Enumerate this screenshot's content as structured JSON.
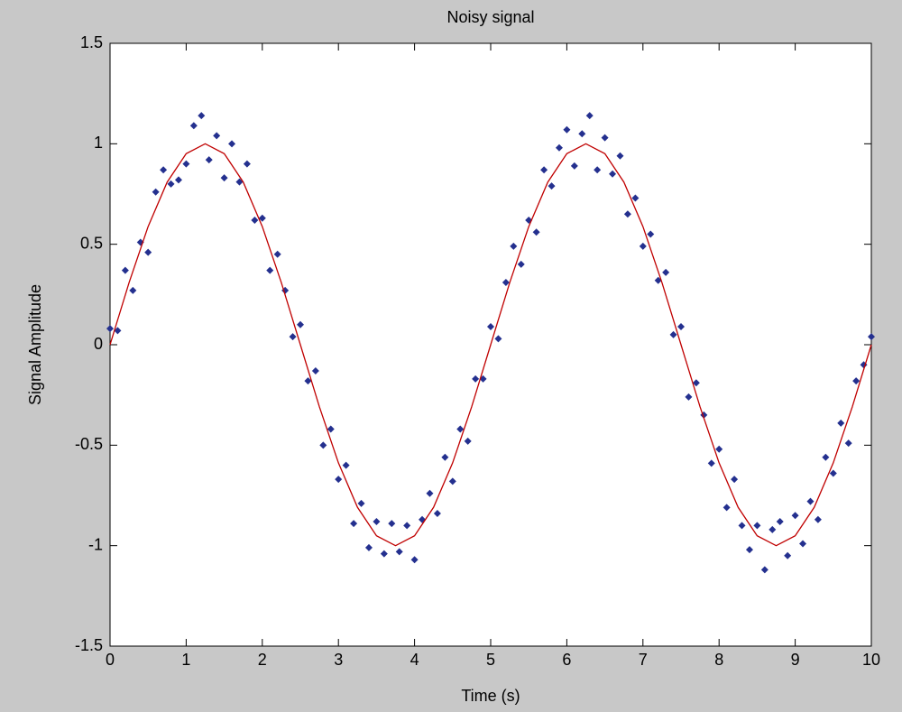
{
  "chart_data": {
    "type": "scatter",
    "title": "Noisy signal",
    "xlabel": "Time (s)",
    "ylabel": "Signal Amplitude",
    "xlim": [
      0,
      10
    ],
    "xticks": [
      0,
      1,
      2,
      3,
      4,
      5,
      6,
      7,
      8,
      9,
      10
    ],
    "ylim": [
      -1.5,
      1.5
    ],
    "yticks": [
      -1.5,
      -1,
      -0.5,
      0,
      0.5,
      1,
      1.5
    ],
    "grid": false,
    "series": [
      {
        "type": "scatter",
        "color": "#24308f",
        "x": [
          0,
          0.1,
          0.2,
          0.3,
          0.4,
          0.5,
          0.6,
          0.7,
          0.8,
          0.9,
          1,
          1.1,
          1.2,
          1.3,
          1.4,
          1.5,
          1.6,
          1.7,
          1.8,
          1.9,
          2,
          2.1,
          2.2,
          2.3,
          2.4,
          2.5,
          2.6,
          2.7,
          2.8,
          2.9,
          3,
          3.1,
          3.2,
          3.3,
          3.4,
          3.5,
          3.6,
          3.7,
          3.8,
          3.9,
          4,
          4.1,
          4.2,
          4.3,
          4.4,
          4.5,
          4.6,
          4.7,
          4.8,
          4.9,
          5,
          5.1,
          5.2,
          5.3,
          5.4,
          5.5,
          5.6,
          5.7,
          5.8,
          5.9,
          6,
          6.1,
          6.2,
          6.3,
          6.4,
          6.5,
          6.6,
          6.7,
          6.8,
          6.9,
          7,
          7.1,
          7.2,
          7.3,
          7.4,
          7.5,
          7.6,
          7.7,
          7.8,
          7.9,
          8,
          8.1,
          8.2,
          8.3,
          8.4,
          8.5,
          8.6,
          8.7,
          8.8,
          8.9,
          9,
          9.1,
          9.2,
          9.3,
          9.4,
          9.5,
          9.6,
          9.7,
          9.8,
          9.9,
          10
        ],
        "values": [
          0.08,
          0.07,
          0.37,
          0.27,
          0.51,
          0.46,
          0.76,
          0.87,
          0.8,
          0.82,
          0.9,
          1.09,
          1.14,
          0.92,
          1.04,
          0.83,
          1.0,
          0.81,
          0.9,
          0.62,
          0.63,
          0.37,
          0.45,
          0.27,
          0.04,
          0.1,
          -0.18,
          -0.13,
          -0.5,
          -0.42,
          -0.67,
          -0.6,
          -0.89,
          -0.79,
          -1.01,
          -0.88,
          -1.04,
          -0.89,
          -1.03,
          -0.9,
          -1.07,
          -0.87,
          -0.74,
          -0.84,
          -0.56,
          -0.68,
          -0.42,
          -0.48,
          -0.17,
          -0.17,
          0.09,
          0.03,
          0.31,
          0.49,
          0.4,
          0.62,
          0.56,
          0.87,
          0.79,
          0.98,
          1.07,
          0.89,
          1.05,
          1.14,
          0.87,
          1.03,
          0.85,
          0.94,
          0.65,
          0.73,
          0.49,
          0.55,
          0.32,
          0.36,
          0.05,
          0.09,
          -0.26,
          -0.19,
          -0.35,
          -0.59,
          -0.52,
          -0.81,
          -0.67,
          -0.9,
          -1.02,
          -0.9,
          -1.12,
          -0.92,
          -0.88,
          -1.05,
          -0.85,
          -0.99,
          -0.78,
          -0.87,
          -0.56,
          -0.64,
          -0.39,
          -0.49,
          -0.18,
          -0.1,
          0.04
        ]
      },
      {
        "type": "line",
        "color": "#c00000",
        "x": [
          0,
          0.25,
          0.5,
          0.75,
          1,
          1.25,
          1.5,
          1.75,
          2,
          2.25,
          2.5,
          2.75,
          3,
          3.25,
          3.5,
          3.75,
          4,
          4.25,
          4.5,
          4.75,
          5,
          5.25,
          5.5,
          5.75,
          6,
          6.25,
          6.5,
          6.75,
          7,
          7.25,
          7.5,
          7.75,
          8,
          8.25,
          8.5,
          8.75,
          9,
          9.25,
          9.5,
          9.75,
          10
        ],
        "values": [
          0,
          0.309,
          0.588,
          0.809,
          0.951,
          1,
          0.951,
          0.809,
          0.588,
          0.309,
          0,
          -0.309,
          -0.588,
          -0.809,
          -0.951,
          -1,
          -0.951,
          -0.809,
          -0.588,
          -0.309,
          0,
          0.309,
          0.588,
          0.809,
          0.951,
          1,
          0.951,
          0.809,
          0.588,
          0.309,
          0,
          -0.309,
          -0.588,
          -0.809,
          -0.951,
          -1,
          -0.951,
          -0.809,
          -0.588,
          -0.309,
          0
        ]
      }
    ]
  }
}
